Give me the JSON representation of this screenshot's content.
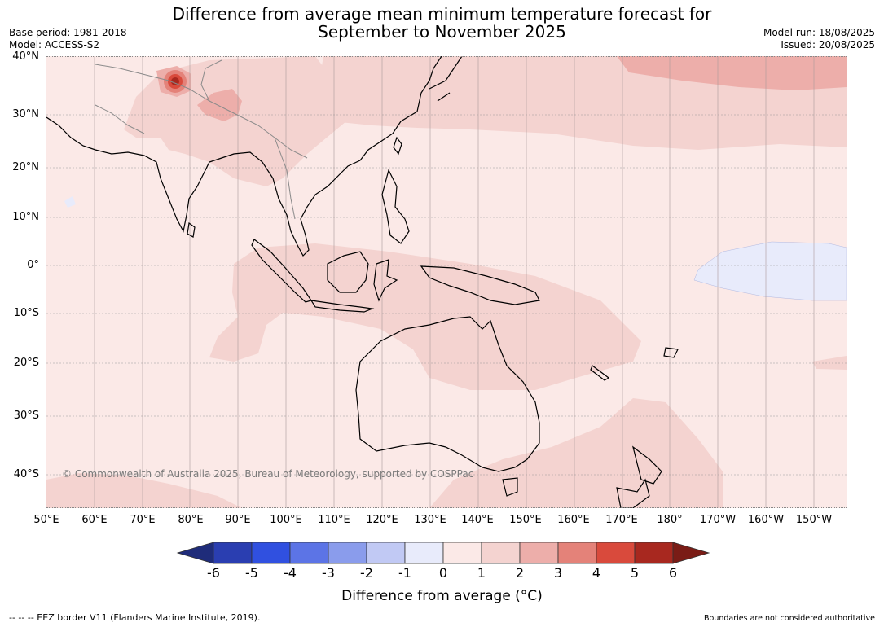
{
  "title": {
    "line1": "Difference from average mean minimum temperature forecast for",
    "line2": "September to November 2025"
  },
  "meta_left": {
    "base_period": "Base period: 1981-2018",
    "model": "Model: ACCESS-S2"
  },
  "meta_right": {
    "model_run": "Model run: 18/08/2025",
    "issued": "Issued: 20/08/2025"
  },
  "map": {
    "lat_labels": [
      "40°N",
      "30°N",
      "20°N",
      "10°N",
      "0°",
      "10°S",
      "20°S",
      "30°S",
      "40°S"
    ],
    "lon_labels": [
      "50°E",
      "60°E",
      "70°E",
      "80°E",
      "90°E",
      "100°E",
      "110°E",
      "120°E",
      "130°E",
      "140°E",
      "150°E",
      "160°E",
      "170°E",
      "180°",
      "170°W",
      "160°W",
      "150°W"
    ],
    "credit": "© Commonwealth of Australia 2025, Bureau of Meteorology, supported by COSPPac",
    "colors": {
      "anomaly_0_1": "#fbe9e7",
      "anomaly_1_2": "#f4d3d0",
      "anomaly_2_3": "#edaeaa",
      "anomaly_3_4": "#e48279",
      "anomaly_4_5": "#d94a3c",
      "anomaly_minus1_0": "#e8ebfb",
      "land_outline": "#000000",
      "border": "#888888"
    }
  },
  "colorbar": {
    "ticks": [
      "-6",
      "-5",
      "-4",
      "-3",
      "-2",
      "-1",
      "0",
      "1",
      "2",
      "3",
      "4",
      "5",
      "6"
    ],
    "label": "Difference from average (°C)",
    "colors": [
      "#1f2c7a",
      "#2a3eb1",
      "#3050e0",
      "#5c74e6",
      "#8a9cec",
      "#c1c9f4",
      "#e8ebfb",
      "#fbe9e7",
      "#f4d3d0",
      "#edaeaa",
      "#e48279",
      "#d94a3c",
      "#a8281f",
      "#7a1c16"
    ]
  },
  "footer": {
    "left": "--  --  -- EEZ border V11 (Flanders Marine Institute, 2019).",
    "right": "Boundaries are not considered authoritative"
  }
}
